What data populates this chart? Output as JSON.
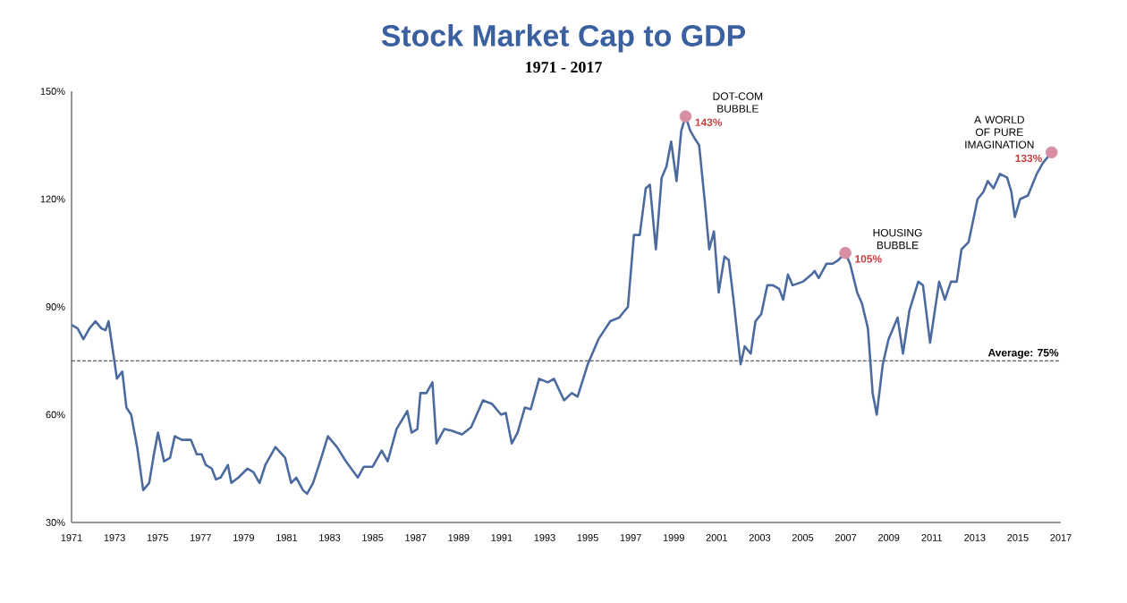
{
  "chart_data": {
    "type": "line",
    "title": "Stock Market Cap to GDP",
    "subtitle": "1971 - 2017",
    "xlim": [
      1971,
      2017
    ],
    "ylim": [
      30,
      150
    ],
    "xticks": [
      1971,
      1973,
      1975,
      1977,
      1979,
      1981,
      1983,
      1985,
      1987,
      1989,
      1991,
      1993,
      1995,
      1997,
      1999,
      2001,
      2003,
      2005,
      2007,
      2009,
      2011,
      2013,
      2015,
      2017
    ],
    "yticks": [
      {
        "value": 30,
        "label": "30%"
      },
      {
        "value": 60,
        "label": "60%"
      },
      {
        "value": 90,
        "label": "90%"
      },
      {
        "value": 120,
        "label": "120%"
      },
      {
        "value": 150,
        "label": "150%"
      }
    ],
    "grid": false,
    "line_style": "solid",
    "series": [
      {
        "color": "#4b6b9f",
        "x": [
          1971.0,
          1971.28,
          1971.55,
          1971.83,
          1972.11,
          1972.39,
          1972.58,
          1972.72,
          1972.94,
          1973.11,
          1973.36,
          1973.55,
          1973.77,
          1974.05,
          1974.33,
          1974.61,
          1974.83,
          1975.02,
          1975.3,
          1975.58,
          1975.8,
          1976.13,
          1976.55,
          1976.82,
          1977.05,
          1977.24,
          1977.52,
          1977.71,
          1977.93,
          1978.27,
          1978.43,
          1978.76,
          1979.18,
          1979.46,
          1979.74,
          1980.01,
          1980.48,
          1980.93,
          1981.21,
          1981.45,
          1981.76,
          1981.95,
          1982.23,
          1982.56,
          1982.92,
          1983.34,
          1983.76,
          1984.31,
          1984.59,
          1985.0,
          1985.42,
          1985.7,
          1986.11,
          1986.61,
          1986.81,
          1987.08,
          1987.22,
          1987.5,
          1987.78,
          1987.97,
          1988.33,
          1988.69,
          1989.16,
          1989.58,
          1990.13,
          1990.55,
          1990.97,
          1991.19,
          1991.47,
          1991.74,
          1992.08,
          1992.35,
          1992.74,
          1993.15,
          1993.43,
          1993.9,
          1994.26,
          1994.53,
          1995.0,
          1995.5,
          1996.05,
          1996.46,
          1996.87,
          1997.15,
          1997.42,
          1997.7,
          1997.89,
          1998.17,
          1998.44,
          1998.66,
          1998.88,
          1999.13,
          1999.35,
          1999.55,
          1999.77,
          1999.96,
          2000.18,
          2000.45,
          2000.65,
          2000.87,
          2001.09,
          2001.36,
          2001.56,
          2001.78,
          2002.11,
          2002.3,
          2002.58,
          2002.8,
          2003.07,
          2003.35,
          2003.62,
          2003.9,
          2004.09,
          2004.31,
          2004.53,
          2005.0,
          2005.41,
          2005.55,
          2005.74,
          2006.1,
          2006.38,
          2006.65,
          2006.98,
          2007.2,
          2007.53,
          2007.75,
          2008.03,
          2008.25,
          2008.44,
          2008.72,
          2008.99,
          2009.41,
          2009.66,
          2009.96,
          2010.37,
          2010.59,
          2010.92,
          2011.34,
          2011.61,
          2011.89,
          2012.16,
          2012.38,
          2012.71,
          2013.13,
          2013.4,
          2013.6,
          2013.87,
          2014.17,
          2014.5,
          2014.7,
          2014.86,
          2015.11,
          2015.47,
          2015.88,
          2016.16,
          2016.57
        ],
        "values": [
          85,
          84,
          81,
          84,
          86,
          84,
          83.5,
          86,
          77,
          70,
          72,
          62,
          60,
          51,
          39,
          41,
          49,
          55,
          47,
          48,
          54,
          53,
          53,
          49,
          49,
          46,
          45,
          42,
          42.5,
          46,
          41,
          42.5,
          45,
          44,
          41,
          46,
          51,
          48,
          41,
          42.5,
          39,
          38,
          41,
          47,
          54,
          51,
          47,
          42.5,
          45.5,
          45.5,
          50,
          47,
          56,
          61,
          55,
          56,
          66,
          66,
          69,
          52,
          56,
          55.5,
          54.5,
          56.5,
          64,
          63,
          60,
          60.5,
          52,
          55,
          62,
          61.5,
          70,
          69,
          70,
          64,
          66,
          65,
          74,
          81,
          86,
          87,
          90,
          110,
          110,
          123,
          124,
          106,
          126,
          129,
          136,
          125,
          139,
          143,
          139,
          137,
          135,
          119,
          106,
          111,
          94,
          104,
          103,
          92,
          74,
          79,
          77,
          86,
          88,
          96,
          96,
          95,
          92,
          99,
          96,
          97,
          99,
          100,
          98,
          102,
          102,
          103,
          105,
          102,
          94,
          91,
          84,
          66,
          60,
          74,
          81,
          87,
          77,
          89,
          97,
          96,
          80,
          97,
          92,
          97,
          97,
          106,
          108,
          120,
          122,
          125,
          123,
          127,
          126,
          122,
          115,
          120,
          121,
          127,
          130,
          133
        ]
      },
      {
        "type": "scatter",
        "color": "#d98fa3",
        "x": [
          1999.55,
          2006.98,
          2016.57
        ],
        "values": [
          143,
          105,
          133
        ],
        "value_labels": [
          "143%",
          "105%",
          "133%"
        ]
      }
    ],
    "ref_lines": [
      {
        "axis": "y",
        "value": 75,
        "label": "Average: 75%",
        "color": "#333333",
        "line_style": "dashed"
      }
    ],
    "annotations": [
      {
        "text": "DOT-COM BUBBLE",
        "x": 1999.55,
        "y": 143
      },
      {
        "text": "HOUSING BUBBLE",
        "x": 2006.98,
        "y": 105
      },
      {
        "text": "A WORLD OF PURE IMAGINATION",
        "x": 2016.57,
        "y": 133
      }
    ]
  }
}
